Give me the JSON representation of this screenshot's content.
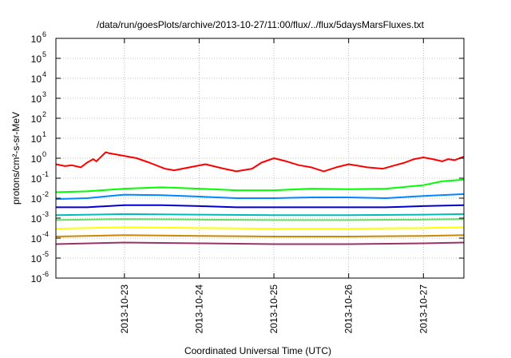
{
  "chart_data": {
    "type": "line",
    "title": "/data/run/goesPlots/archive/2013-10-27/11:00/flux/../flux/5daysMarsFluxes.txt",
    "xlabel": "Coordinated Universal Time (UTC)",
    "ylabel": "protons/cm²-s-sr-MeV",
    "yscale": "log",
    "xlim": [
      "2013-10-22 02:00",
      "2013-10-27 13:00"
    ],
    "ylim": [
      1e-06,
      1000000.0
    ],
    "grid": true,
    "legend": "none",
    "x_ticks": [
      "2013-10-23",
      "2013-10-24",
      "2013-10-25",
      "2013-10-26",
      "2013-10-27"
    ],
    "y_ticks": [
      {
        "value": 1e-06,
        "base": "10",
        "exp": "-6"
      },
      {
        "value": 1e-05,
        "base": "10",
        "exp": "-5"
      },
      {
        "value": 0.0001,
        "base": "10",
        "exp": "-4"
      },
      {
        "value": 0.001,
        "base": "10",
        "exp": "-3"
      },
      {
        "value": 0.01,
        "base": "10",
        "exp": "-2"
      },
      {
        "value": 0.1,
        "base": "10",
        "exp": "-1"
      },
      {
        "value": 1,
        "base": "10",
        "exp": "0"
      },
      {
        "value": 10,
        "base": "10",
        "exp": "1"
      },
      {
        "value": 100,
        "base": "10",
        "exp": "2"
      },
      {
        "value": 1000,
        "base": "10",
        "exp": "3"
      },
      {
        "value": 10000,
        "base": "10",
        "exp": "4"
      },
      {
        "value": 100000,
        "base": "10",
        "exp": "5"
      },
      {
        "value": 1000000,
        "base": "10",
        "exp": "6"
      }
    ],
    "series": [
      {
        "color": "#ff0000",
        "x": [
          "2013-10-22 02:00",
          "2013-10-22 05:00",
          "2013-10-22 07:00",
          "2013-10-22 10:00",
          "2013-10-22 12:00",
          "2013-10-22 14:00",
          "2013-10-22 15:00",
          "2013-10-22 18:00",
          "2013-10-22 19:00",
          "2013-10-23 04:00",
          "2013-10-23 08:00",
          "2013-10-23 13:00",
          "2013-10-23 16:00",
          "2013-10-24 02:00",
          "2013-10-24 08:00",
          "2013-10-24 12:00",
          "2013-10-24 17:00",
          "2013-10-24 20:00",
          "2013-10-25 00:00",
          "2013-10-25 04:00",
          "2013-10-25 08:00",
          "2013-10-25 12:00",
          "2013-10-25 16:00",
          "2013-10-25 20:00",
          "2013-10-26 00:00",
          "2013-10-26 06:00",
          "2013-10-26 11:00",
          "2013-10-26 15:00",
          "2013-10-26 18:00",
          "2013-10-26 21:00",
          "2013-10-27 00:00",
          "2013-10-27 03:00",
          "2013-10-27 06:00",
          "2013-10-27 08:00",
          "2013-10-27 10:00",
          "2013-10-27 13:00"
        ],
        "values": [
          0.5,
          0.4,
          0.45,
          0.35,
          0.6,
          0.9,
          0.7,
          2.0,
          1.8,
          1.0,
          0.6,
          0.3,
          0.25,
          0.5,
          0.3,
          0.22,
          0.3,
          0.6,
          1.0,
          0.7,
          0.45,
          0.35,
          0.22,
          0.35,
          0.5,
          0.35,
          0.3,
          0.45,
          0.6,
          0.9,
          1.1,
          0.9,
          0.7,
          0.9,
          0.8,
          1.2
        ]
      },
      {
        "color": "#00ff00",
        "x": [
          "2013-10-22 02:00",
          "2013-10-22 12:00",
          "2013-10-23 00:00",
          "2013-10-23 12:00",
          "2013-10-24 00:00",
          "2013-10-24 12:00",
          "2013-10-25 00:00",
          "2013-10-25 12:00",
          "2013-10-26 00:00",
          "2013-10-26 12:00",
          "2013-10-27 00:00",
          "2013-10-27 06:00",
          "2013-10-27 13:00"
        ],
        "values": [
          0.02,
          0.022,
          0.03,
          0.035,
          0.03,
          0.025,
          0.025,
          0.03,
          0.028,
          0.03,
          0.045,
          0.07,
          0.085
        ]
      },
      {
        "color": "#0088ff",
        "x": [
          "2013-10-22 02:00",
          "2013-10-22 12:00",
          "2013-10-23 00:00",
          "2013-10-23 12:00",
          "2013-10-24 00:00",
          "2013-10-24 12:00",
          "2013-10-25 00:00",
          "2013-10-25 12:00",
          "2013-10-26 00:00",
          "2013-10-26 12:00",
          "2013-10-27 00:00",
          "2013-10-27 13:00"
        ],
        "values": [
          0.009,
          0.01,
          0.015,
          0.014,
          0.012,
          0.01,
          0.01,
          0.011,
          0.011,
          0.01,
          0.013,
          0.016
        ]
      },
      {
        "color": "#0000cc",
        "x": [
          "2013-10-22 02:00",
          "2013-10-22 12:00",
          "2013-10-23 00:00",
          "2013-10-23 12:00",
          "2013-10-24 00:00",
          "2013-10-24 12:00",
          "2013-10-25 00:00",
          "2013-10-25 12:00",
          "2013-10-26 00:00",
          "2013-10-26 12:00",
          "2013-10-27 00:00",
          "2013-10-27 13:00"
        ],
        "values": [
          0.0035,
          0.0035,
          0.0045,
          0.0045,
          0.004,
          0.0035,
          0.0035,
          0.0035,
          0.0035,
          0.0035,
          0.004,
          0.0045
        ]
      },
      {
        "color": "#00bbbb",
        "x": [
          "2013-10-22 02:00",
          "2013-10-23 00:00",
          "2013-10-24 00:00",
          "2013-10-25 00:00",
          "2013-10-26 00:00",
          "2013-10-27 00:00",
          "2013-10-27 13:00"
        ],
        "values": [
          0.0014,
          0.0016,
          0.0015,
          0.0014,
          0.0014,
          0.0015,
          0.0016
        ]
      },
      {
        "color": "#66dd66",
        "x": [
          "2013-10-22 02:00",
          "2013-10-23 00:00",
          "2013-10-24 00:00",
          "2013-10-25 00:00",
          "2013-10-26 00:00",
          "2013-10-27 00:00",
          "2013-10-27 13:00"
        ],
        "values": [
          0.0008,
          0.0009,
          0.00085,
          0.0008,
          0.0008,
          0.00085,
          0.0009
        ]
      },
      {
        "color": "#ffff00",
        "x": [
          "2013-10-22 02:00",
          "2013-10-23 00:00",
          "2013-10-24 00:00",
          "2013-10-25 00:00",
          "2013-10-26 00:00",
          "2013-10-27 00:00",
          "2013-10-27 13:00"
        ],
        "values": [
          0.0003,
          0.00035,
          0.00032,
          0.0003,
          0.0003,
          0.00032,
          0.00035
        ]
      },
      {
        "color": "#cc8800",
        "x": [
          "2013-10-22 02:00",
          "2013-10-23 00:00",
          "2013-10-24 00:00",
          "2013-10-25 00:00",
          "2013-10-26 00:00",
          "2013-10-27 00:00",
          "2013-10-27 13:00"
        ],
        "values": [
          0.00012,
          0.00014,
          0.00013,
          0.00012,
          0.00012,
          0.00013,
          0.00014
        ]
      },
      {
        "color": "#993366",
        "x": [
          "2013-10-22 02:00",
          "2013-10-23 00:00",
          "2013-10-24 00:00",
          "2013-10-25 00:00",
          "2013-10-26 00:00",
          "2013-10-27 00:00",
          "2013-10-27 13:00"
        ],
        "values": [
          5e-05,
          6e-05,
          5.5e-05,
          5e-05,
          5e-05,
          5.5e-05,
          6e-05
        ]
      }
    ]
  }
}
